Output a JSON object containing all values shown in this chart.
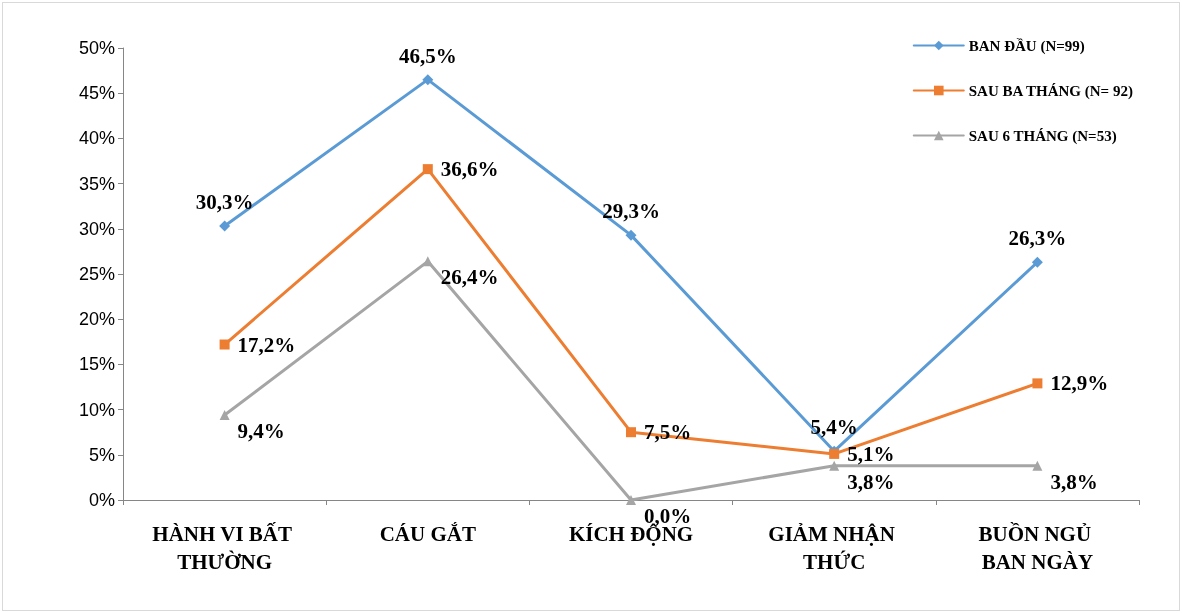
{
  "chart_data": {
    "type": "line",
    "categories": [
      "HÀNH VI BẤT THƯỜNG",
      "CÁU GẮT",
      "KÍCH ĐỘNG",
      "GIẢM NHẬN THỨC",
      "BUỒN NGỦ BAN NGÀY"
    ],
    "series": [
      {
        "name": "BAN ĐẦU (N=99)",
        "color": "#5b9bd5",
        "marker": "diamond",
        "values": [
          30.3,
          46.5,
          29.3,
          5.4,
          26.3
        ],
        "value_labels": [
          "30,3%",
          "46,5%",
          "29,3%",
          "5,4%",
          "26,3%"
        ]
      },
      {
        "name": "SAU BA THÁNG (N= 92)",
        "color": "#ed7d31",
        "marker": "square",
        "values": [
          17.2,
          36.6,
          7.5,
          5.1,
          12.9
        ],
        "value_labels": [
          "17,2%",
          "36,6%",
          "7,5%",
          "5,1%",
          "12,9%"
        ]
      },
      {
        "name": "SAU 6 THÁNG (N=53)",
        "color": "#a5a5a5",
        "marker": "triangle",
        "values": [
          9.4,
          26.4,
          0.0,
          3.8,
          3.8
        ],
        "value_labels": [
          "9,4%",
          "26,4%",
          "0,0%",
          "3,8%",
          "3,8%"
        ]
      }
    ],
    "ylim": [
      0,
      50
    ],
    "yticks": [
      {
        "value": 0,
        "label": "0%"
      },
      {
        "value": 5,
        "label": "5%"
      },
      {
        "value": 10,
        "label": "10%"
      },
      {
        "value": 15,
        "label": "15%"
      },
      {
        "value": 20,
        "label": "20%"
      },
      {
        "value": 25,
        "label": "25%"
      },
      {
        "value": 30,
        "label": "30%"
      },
      {
        "value": 35,
        "label": "35%"
      },
      {
        "value": 40,
        "label": "40%"
      },
      {
        "value": 45,
        "label": "45%"
      },
      {
        "value": 50,
        "label": "50%"
      }
    ],
    "grid": false,
    "legend": "top right",
    "line_style": "solid"
  }
}
